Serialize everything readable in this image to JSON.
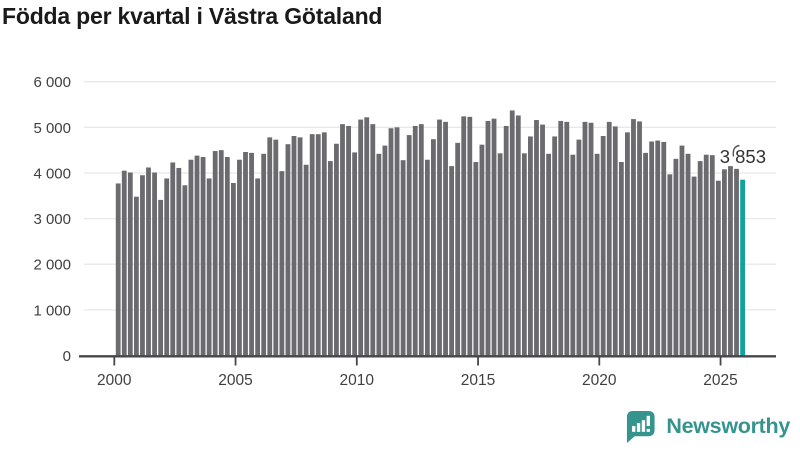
{
  "title": "Födda per kvartal i Västra Götaland",
  "branding": {
    "logo_text": "Newsworthy"
  },
  "colors": {
    "bar_default": "#6a6a6f",
    "bar_highlight": "#11a2a0",
    "grid": "#e8e8e8",
    "axis": "#47474b",
    "title_text": "#1a1a1a",
    "axis_text": "#404040",
    "annotation_text": "#333333",
    "brand_teal": "#36948e",
    "background": "#ffffff"
  },
  "chart_data": {
    "type": "bar",
    "title": "Födda per kvartal i Västra Götaland",
    "frequency": "quarterly",
    "start": "2000 K1",
    "end": "2025 K4",
    "start_year": 2000,
    "values": [
      3770,
      4050,
      4010,
      3480,
      3950,
      4120,
      4010,
      3410,
      3880,
      4230,
      4110,
      3730,
      4290,
      4380,
      4350,
      3880,
      4480,
      4500,
      4350,
      3780,
      4290,
      4460,
      4440,
      3880,
      4420,
      4780,
      4730,
      4040,
      4630,
      4810,
      4780,
      4180,
      4850,
      4850,
      4890,
      4260,
      4640,
      5070,
      5030,
      4450,
      5170,
      5220,
      5070,
      4420,
      4600,
      4980,
      5000,
      4280,
      4830,
      5030,
      5070,
      4290,
      4740,
      5170,
      5120,
      4150,
      4660,
      5240,
      5230,
      4240,
      4620,
      5140,
      5190,
      4430,
      5030,
      5370,
      5260,
      4430,
      4800,
      5160,
      5060,
      4420,
      4800,
      5140,
      5120,
      4400,
      4730,
      5120,
      5100,
      4420,
      4810,
      5120,
      5020,
      4240,
      4890,
      5180,
      5130,
      4440,
      4690,
      4710,
      4680,
      3970,
      4310,
      4600,
      4420,
      3920,
      4260,
      4400,
      4390,
      3830,
      4080,
      4150,
      4090,
      3853
    ],
    "highlight": {
      "index": 103,
      "value": 3853,
      "label": "3 853"
    },
    "y_axis": {
      "min": 0,
      "max": 6000,
      "ticks": [
        0,
        1000,
        2000,
        3000,
        4000,
        5000,
        6000
      ],
      "tick_labels": [
        "0",
        "1 000",
        "2 000",
        "3 000",
        "4 000",
        "5 000",
        "6 000"
      ]
    },
    "x_axis": {
      "tick_years": [
        "2000",
        "2005",
        "2010",
        "2015",
        "2020",
        "2025"
      ]
    },
    "grid": true,
    "legend": false
  }
}
